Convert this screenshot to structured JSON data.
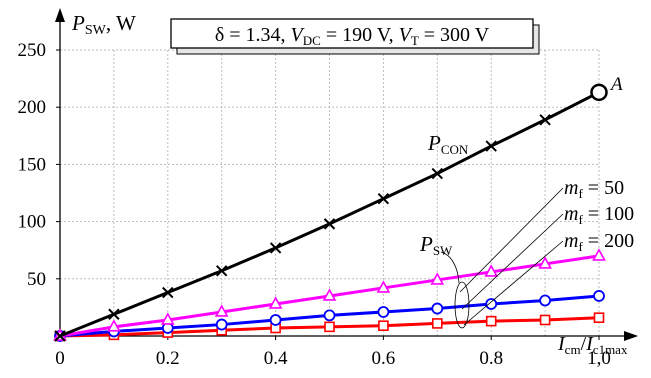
{
  "chart_data": {
    "type": "line",
    "ylabel": {
      "sym": "P",
      "sub": "SW",
      "unit": ", W"
    },
    "xlabel": {
      "num": "I",
      "num_sub": "cm",
      "slash": "/",
      "den": "I",
      "den_sub": "c1max"
    },
    "xlim": [
      0,
      1.0
    ],
    "ylim": [
      0,
      250
    ],
    "grid": true,
    "xticks": [
      0,
      0.2,
      0.4,
      0.6,
      0.8,
      1.0
    ],
    "xtick_labels": [
      "0",
      "0.2",
      "0.4",
      "0.6",
      "0.8",
      "1,0"
    ],
    "yticks": [
      0,
      50,
      100,
      150,
      200,
      250
    ],
    "ytick_labels": [
      "",
      "50",
      "100",
      "150",
      "200",
      "250"
    ],
    "params_box": {
      "delta_part": "δ = 1.34, ",
      "vdc_sym": "V",
      "vdc_sub": "DC",
      "vdc_val": " = 190 V, ",
      "vt_sym": "V",
      "vt_sub": "T",
      "vt_val": " = 300 V"
    },
    "point_label": "A",
    "sw_group_label": {
      "sym": "P",
      "sub": "SW"
    },
    "series": [
      {
        "label_sym": "P",
        "label_sub": "CON",
        "color": "#000000",
        "marker": "x",
        "x": [
          0,
          0.1,
          0.2,
          0.3,
          0.4,
          0.5,
          0.6,
          0.7,
          0.8,
          0.9,
          1.0
        ],
        "values": [
          0,
          19,
          38,
          57,
          77,
          98,
          120,
          142,
          166,
          189,
          213
        ]
      },
      {
        "label_sym": "m",
        "label_sub": "f",
        "label_val": " = 50",
        "color": "#ff00ff",
        "marker": "triangle",
        "x": [
          0,
          0.1,
          0.2,
          0.3,
          0.4,
          0.5,
          0.6,
          0.7,
          0.8,
          0.9,
          1.0
        ],
        "values": [
          0,
          8,
          14,
          21,
          28,
          35,
          42,
          49,
          56,
          63,
          70
        ]
      },
      {
        "label_sym": "m",
        "label_sub": "f",
        "label_val": " = 100",
        "color": "#0000ff",
        "marker": "circle",
        "x": [
          0,
          0.1,
          0.2,
          0.3,
          0.4,
          0.5,
          0.6,
          0.7,
          0.8,
          0.9,
          1.0
        ],
        "values": [
          0,
          4,
          7,
          10,
          14,
          18,
          21,
          24,
          28,
          31,
          35
        ]
      },
      {
        "label_sym": "m",
        "label_sub": "f",
        "label_val": " = 200",
        "color": "#ff0000",
        "marker": "square",
        "x": [
          0,
          0.1,
          0.2,
          0.3,
          0.4,
          0.5,
          0.6,
          0.7,
          0.8,
          0.9,
          1.0
        ],
        "values": [
          0,
          1,
          3,
          5,
          7,
          8,
          9,
          11,
          13,
          14,
          16
        ]
      }
    ]
  }
}
